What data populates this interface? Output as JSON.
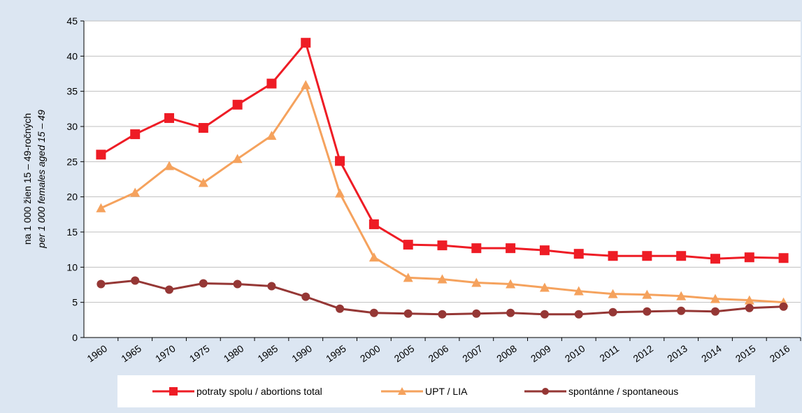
{
  "chart_data": {
    "type": "line",
    "ylabel": [
      "na 1 000 žien 15 – 49-ročných",
      "per 1 000 females aged 15 – 49"
    ],
    "categories": [
      "1960",
      "1965",
      "1970",
      "1975",
      "1980",
      "1985",
      "1990",
      "1995",
      "2000",
      "2005",
      "2006",
      "2007",
      "2008",
      "2009",
      "2010",
      "2011",
      "2012",
      "2013",
      "2014",
      "2015",
      "2016"
    ],
    "series": [
      {
        "name": "potraty spolu / abortions total",
        "color": "#ee1c25",
        "marker": "square",
        "values": [
          26.0,
          28.9,
          31.2,
          29.8,
          33.1,
          36.1,
          41.9,
          25.1,
          16.1,
          13.2,
          13.1,
          12.7,
          12.7,
          12.4,
          11.9,
          11.6,
          11.6,
          11.6,
          11.2,
          11.4,
          11.3
        ]
      },
      {
        "name": "UPT / LIA",
        "color": "#f5a25d",
        "marker": "triangle",
        "values": [
          18.4,
          20.6,
          24.4,
          22.0,
          25.4,
          28.7,
          35.9,
          20.5,
          11.4,
          8.5,
          8.3,
          7.8,
          7.6,
          7.1,
          6.6,
          6.2,
          6.1,
          5.9,
          5.5,
          5.3,
          5.0
        ]
      },
      {
        "name": "spontánne / spontaneous",
        "color": "#953735",
        "marker": "circle",
        "values": [
          7.6,
          8.1,
          6.8,
          7.7,
          7.6,
          7.3,
          5.8,
          4.1,
          3.5,
          3.4,
          3.3,
          3.4,
          3.5,
          3.3,
          3.3,
          3.6,
          3.7,
          3.8,
          3.7,
          4.2,
          4.4
        ]
      }
    ],
    "ylim": [
      0,
      45
    ],
    "yticks": [
      0,
      5,
      10,
      15,
      20,
      25,
      30,
      35,
      40,
      45
    ],
    "grid": true,
    "legend": "bottom"
  }
}
